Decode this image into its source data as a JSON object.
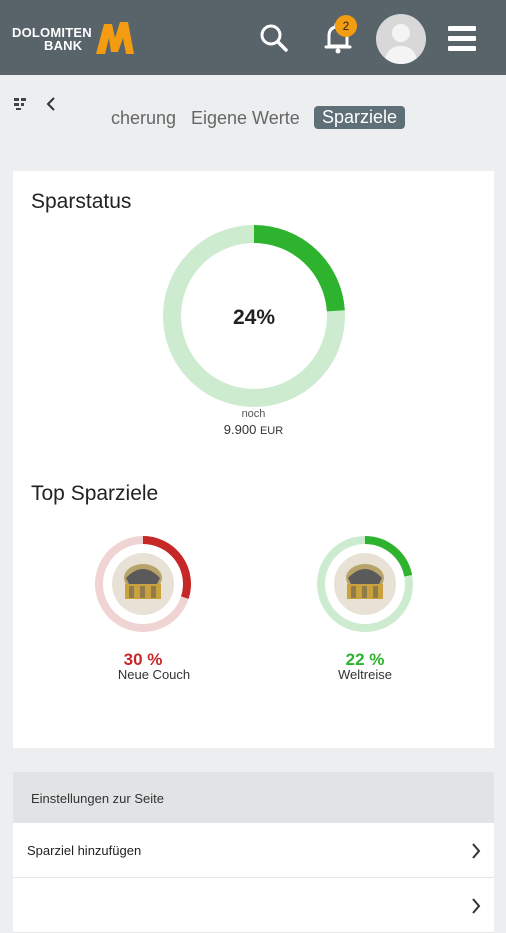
{
  "header": {
    "logo_line1": "DOLOMITEN",
    "logo_line2": "BANK",
    "notification_count": "2",
    "colors": {
      "bar": "#58646a",
      "brand": "#f39c12",
      "badge": "#f39c12"
    },
    "icons": [
      "search-icon",
      "bell-icon",
      "user-avatar-icon",
      "hamburger-menu-icon"
    ]
  },
  "tabs": {
    "items": [
      {
        "label": "Versicherung",
        "visible_text": "cherung"
      },
      {
        "label": "Eigene Werte"
      },
      {
        "label": "Sparziele",
        "active": true
      }
    ]
  },
  "sparstatus": {
    "title": "Sparstatus",
    "percent_label": "24%",
    "progress": 0.24,
    "noch_label": "noch",
    "remaining_amount": "9.900",
    "currency": "EUR",
    "colors": {
      "fill": "#2db32d",
      "track": "#cdebcf"
    }
  },
  "top_goals": {
    "title": "Top Sparziele",
    "goals": [
      {
        "name": "Neue Couch",
        "percent_label": "30 %",
        "progress": 0.3,
        "color": "#c62828",
        "track": "#f0d3d3"
      },
      {
        "name": "Weltreise",
        "percent_label": "22 %",
        "progress": 0.22,
        "color": "#2db32d",
        "track": "#cdebcf"
      }
    ]
  },
  "settings": {
    "header": "Einstellungen zur Seite",
    "rows": [
      {
        "label": "Sparziel hinzufügen"
      }
    ]
  }
}
